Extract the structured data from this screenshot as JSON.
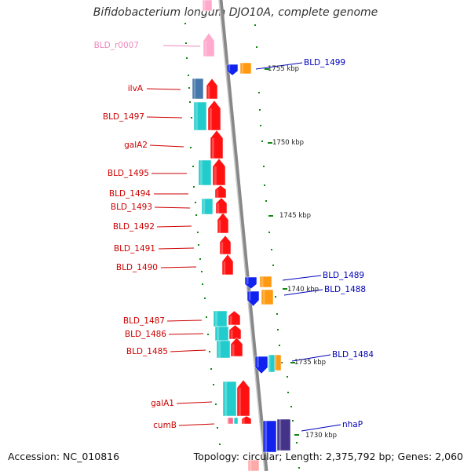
{
  "title": "Bifidobacterium longum DJO10A, complete genome",
  "footer": {
    "accession": "Accession: NC_010816",
    "topology": "Topology: circular; Length: 2,375,792 bp; Genes: 2,060"
  },
  "colors": {
    "left_label": "#cc0000",
    "right_label": "#0000bb",
    "rna_label": "#ee88bb",
    "forward_gene": "#ff1111",
    "forward_cyan": "#22cccc",
    "forward_steel": "#4477aa",
    "reverse_gene": "#1122ee",
    "reverse_orange": "#ff9911",
    "reverse_navy": "#443388",
    "rna_gene": "#ffaacc",
    "backbone": "#999999",
    "tick": "#118811"
  },
  "kbp_markers": [
    "1755 kbp",
    "1750 kbp",
    "1745 kbp",
    "1740 kbp",
    "1735 kbp",
    "1730 kbp"
  ],
  "left_labels": [
    "BLD_r0007",
    "ilvA",
    "BLD_1497",
    "galA2",
    "BLD_1495",
    "BLD_1494",
    "BLD_1493",
    "BLD_1492",
    "BLD_1491",
    "BLD_1490",
    "BLD_1487",
    "BLD_1486",
    "BLD_1485",
    "galA1",
    "cumB"
  ],
  "right_labels": [
    "BLD_1499",
    "BLD_1489",
    "BLD_1488",
    "BLD_1484",
    "nhaP"
  ]
}
